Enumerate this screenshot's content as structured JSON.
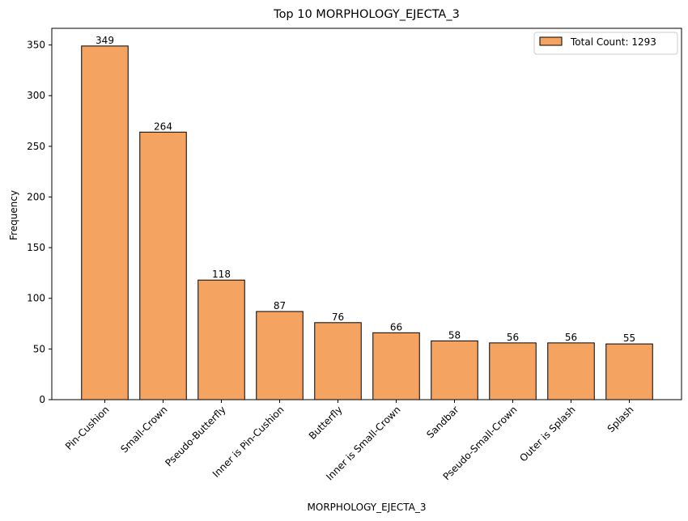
{
  "chart_data": {
    "type": "bar",
    "title": "Top 10 MORPHOLOGY_EJECTA_3",
    "xlabel": "MORPHOLOGY_EJECTA_3",
    "ylabel": "Frequency",
    "categories": [
      "Pin-Cushion",
      "Small-Crown",
      "Pseudo-Butterfly",
      "Inner is Pin-Cushion",
      "Butterfly",
      "Inner is Small-Crown",
      "Sandbar",
      "Pseudo-Small-Crown",
      "Outer is Splash",
      "Splash"
    ],
    "values": [
      349,
      264,
      118,
      87,
      76,
      66,
      58,
      56,
      56,
      55
    ],
    "ylim": [
      0,
      366.45
    ],
    "yticks": [
      0,
      50,
      100,
      150,
      200,
      250,
      300,
      350
    ],
    "grid": false,
    "legend": {
      "label": "Total Count: 1293",
      "position": "upper right"
    },
    "colors": {
      "bar_fill": "#f4a460",
      "bar_edge": "#000000"
    }
  }
}
